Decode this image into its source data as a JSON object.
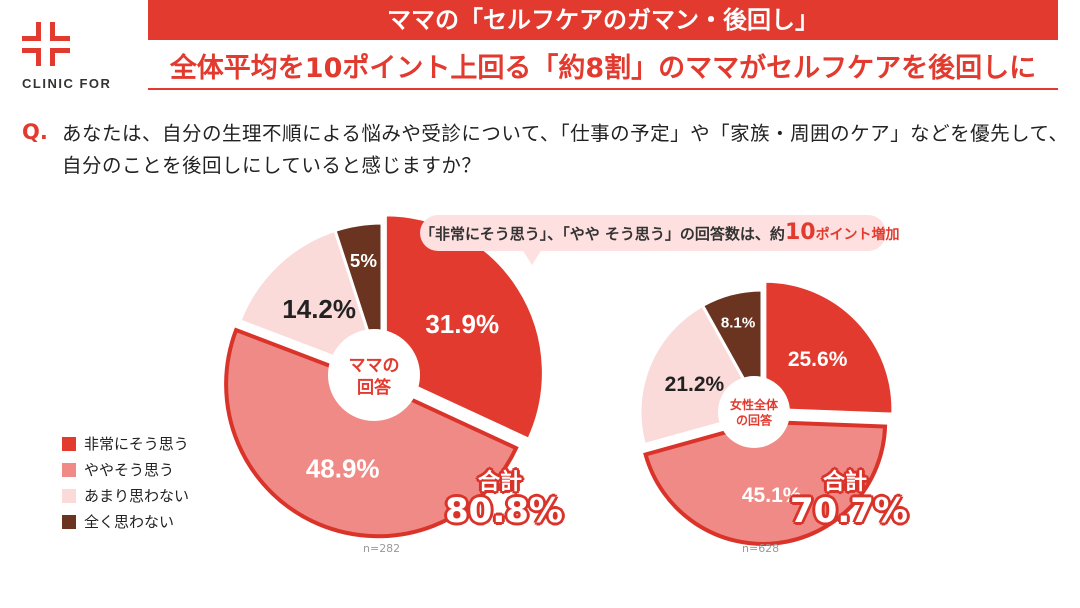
{
  "brand": {
    "logo_text": "CLINIC FOR",
    "color": "#e23a2e"
  },
  "header": {
    "title": "ママの「セルフケアのガマン・後回し」",
    "subtitle": "全体平均を10ポイント上回る「約8割」のママがセルフケアを後回しに"
  },
  "question": {
    "mark": "Q.",
    "text": "あなたは、自分の生理不順による悩みや受診について、「仕事の予定」や「家族・周囲のケア」などを優先して、自分のことを後回しにしていると感じますか？"
  },
  "callout": {
    "pre": "「非常にそう思う」、「やや そう思う」の回答数は、約",
    "num": "10",
    "post": "ポイント増加"
  },
  "chart_data": [
    {
      "type": "pie",
      "center_label": "ママの\n回答",
      "center_label_lines": [
        "ママの",
        "回答"
      ],
      "categories": [
        "非常にそう思う",
        "ややそう思う",
        "あまり思わない",
        "全く思わない"
      ],
      "values": [
        31.9,
        48.9,
        14.2,
        5
      ],
      "labels": [
        "31.9%",
        "48.9%",
        "14.2%",
        "5%"
      ],
      "total_label": "合計",
      "total_value": "80.8%",
      "n": "n=282"
    },
    {
      "type": "pie",
      "center_label_lines": [
        "女性全体",
        "の回答"
      ],
      "categories": [
        "非常にそう思う",
        "ややそう思う",
        "あまり思わない",
        "全く思わない"
      ],
      "values": [
        25.6,
        45.1,
        21.2,
        8.1
      ],
      "labels": [
        "25.6%",
        "45.1%",
        "21.2%",
        "8.1%"
      ],
      "total_label": "合計",
      "total_value": "70.7%",
      "n": "n=628"
    }
  ],
  "legend": [
    {
      "label": "非常にそう思う",
      "color": "#e23a2e"
    },
    {
      "label": "ややそう思う",
      "color": "#f08a86"
    },
    {
      "label": "あまり思わない",
      "color": "#fbdada"
    },
    {
      "label": "全く思わない",
      "color": "#6b3420"
    }
  ]
}
